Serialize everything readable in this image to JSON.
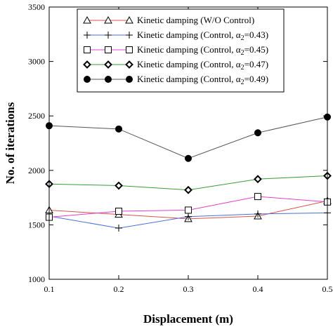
{
  "chart_data": {
    "type": "line",
    "xlabel": "Displacement (m)",
    "ylabel": "No. of iterations",
    "x": [
      0.1,
      0.2,
      0.3,
      0.4,
      0.5
    ],
    "x_tick_labels": [
      "0.1",
      "0.2",
      "0.3",
      "0.4",
      "0.5"
    ],
    "xlim": [
      0.1,
      0.5
    ],
    "ylim": [
      1000,
      3500
    ],
    "y_ticks": [
      1000,
      1500,
      2000,
      2500,
      3000,
      3500
    ],
    "y_tick_labels": [
      "1000",
      "1500",
      "2000",
      "2500",
      "3000",
      "3500"
    ],
    "grid": false,
    "legend_position": "top-right",
    "series": [
      {
        "name": "Kinetic damping (W/O Control)",
        "legend": {
          "prefix": "Kinetic damping (W/O Control)",
          "sub": "",
          "suffix": ""
        },
        "marker": "triangle",
        "color": "#d9534f",
        "values": [
          1635,
          1595,
          1555,
          1580,
          1720
        ]
      },
      {
        "name": "Kinetic damping (Control, α2=0.43)",
        "legend": {
          "prefix": "Kinetic damping (Control, α",
          "sub": "2",
          "suffix": "=0.43)"
        },
        "marker": "plus",
        "color": "#4a6fd8",
        "values": [
          1580,
          1470,
          1575,
          1600,
          1610
        ]
      },
      {
        "name": "Kinetic damping (Control, α2=0.45)",
        "legend": {
          "prefix": "Kinetic damping (Control, α",
          "sub": "2",
          "suffix": "=0.45)"
        },
        "marker": "square",
        "color": "#e040c8",
        "values": [
          1570,
          1625,
          1635,
          1760,
          1710
        ]
      },
      {
        "name": "Kinetic damping (Control, α2=0.47)",
        "legend": {
          "prefix": "Kinetic damping (Control, α",
          "sub": "2",
          "suffix": "=0.47)"
        },
        "marker": "diamond",
        "color": "#3a9a3a",
        "values": [
          1875,
          1860,
          1820,
          1920,
          1950
        ]
      },
      {
        "name": "Kinetic damping (Control, α2=0.49)",
        "legend": {
          "prefix": "Kinetic damping (Control, α",
          "sub": "2",
          "suffix": "=0.49)"
        },
        "marker": "circle",
        "color": "#555555",
        "values": [
          2410,
          2380,
          2110,
          2345,
          2490
        ]
      }
    ]
  }
}
